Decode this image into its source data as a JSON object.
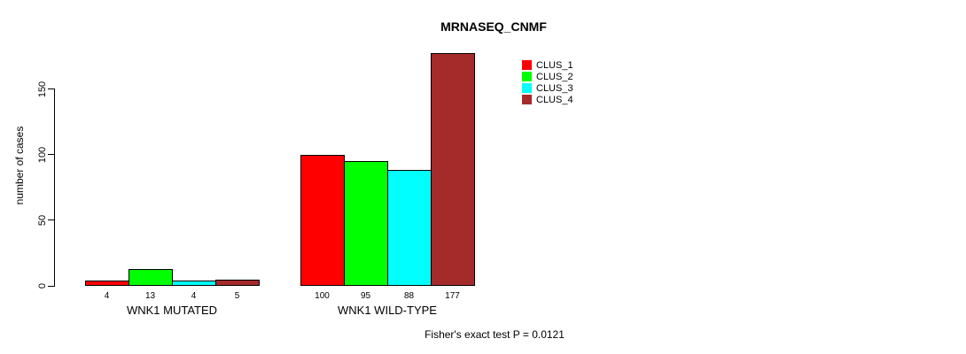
{
  "chart_data": {
    "type": "bar",
    "title": "MRNASEQ_CNMF",
    "ylabel": "number of cases",
    "yticks": [
      0,
      50,
      100,
      150
    ],
    "ylim": [
      0,
      150
    ],
    "grid": false,
    "legend_position": "top-right",
    "categories": [
      "WNK1 MUTATED",
      "WNK1 WILD-TYPE"
    ],
    "series": [
      {
        "name": "CLUS_1",
        "color": "#ff0000",
        "values": [
          4,
          100
        ]
      },
      {
        "name": "CLUS_2",
        "color": "#00ff00",
        "values": [
          13,
          95
        ]
      },
      {
        "name": "CLUS_3",
        "color": "#00ffff",
        "values": [
          4,
          88
        ]
      },
      {
        "name": "CLUS_4",
        "color": "#a52a2a",
        "values": [
          5,
          177
        ]
      }
    ],
    "bar_value_labels": {
      "WNK1 MUTATED": [
        4,
        13,
        4,
        5
      ],
      "WNK1 WILD-TYPE": [
        100,
        95,
        88,
        177
      ]
    },
    "footnote": "Fisher's exact test P = 0.0121"
  },
  "colors": {
    "background": "#ffffff",
    "axis": "#000000",
    "text": "#000000"
  }
}
